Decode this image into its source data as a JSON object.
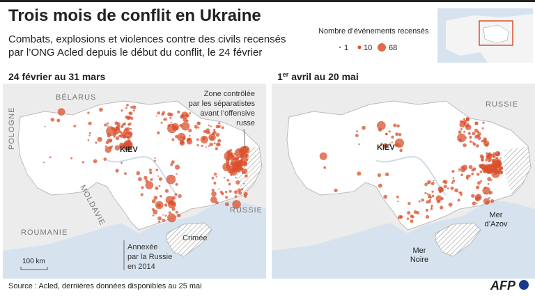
{
  "header": {
    "title": "Trois mois de conflit en Ukraine",
    "subtitle_lines": [
      "Combats, explosions et violences contre des civils recensés",
      "par l’ONG Acled depuis le début du conflit, le 24 février"
    ]
  },
  "legend": {
    "title": "Nombre d’événements recensés",
    "items": [
      "1",
      "10",
      "68"
    ]
  },
  "left_panel": {
    "title": "24 février au 31 mars",
    "labels": {
      "belarus": "BÉLARUS",
      "pologne": "POLOGNE",
      "kiev": "KIEV",
      "moldavie": "MOLDAVIE",
      "roumanie": "ROUMANIE",
      "russie": "RUSSIE",
      "zone": [
        "Zone contrôlée",
        "par les séparatistes",
        "avant l’offensive",
        "russe"
      ],
      "crimee": "Crimée",
      "annexee": [
        "Annexée",
        "par la Russie",
        "en 2014"
      ],
      "scale": "100 km"
    }
  },
  "right_panel": {
    "title": {
      "number": "1",
      "sup": "er",
      "rest": " avril au 20 mai"
    },
    "labels": {
      "russie": "RUSSIE",
      "kiev": "KIEV",
      "azov": [
        "Mer",
        "d’Azov"
      ],
      "noire": [
        "Mer",
        "Noire"
      ]
    }
  },
  "footer": {
    "source": "Source : Acled, dernières données disponibles au 25 mai",
    "logo": "AFP"
  }
}
